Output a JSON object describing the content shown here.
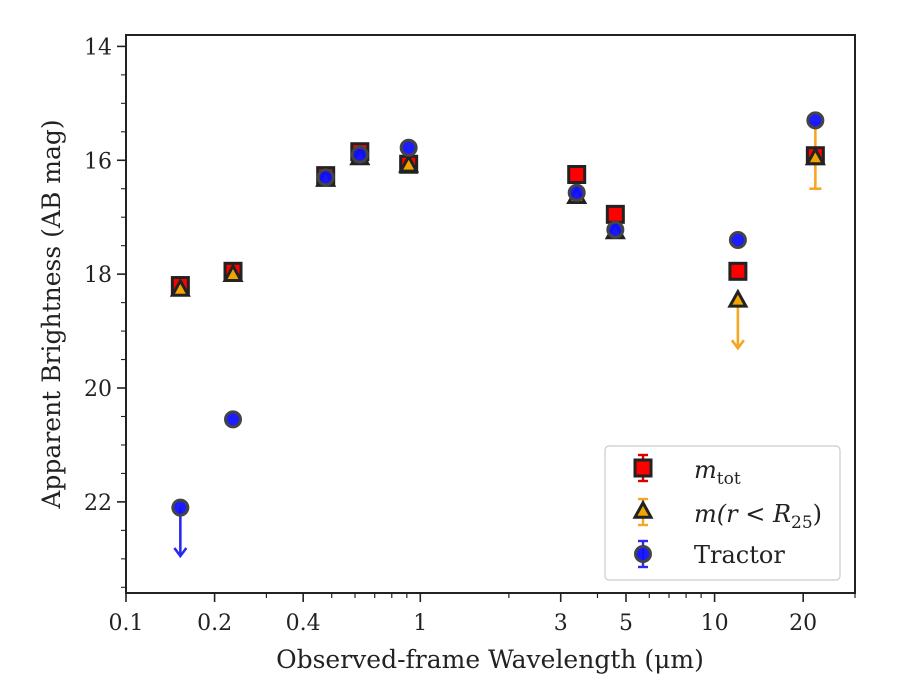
{
  "chart_data": {
    "type": "scatter",
    "xlabel": "Observed-frame Wavelength (μm)",
    "ylabel": "Apparent Brightness (AB mag)",
    "xscale": "log",
    "xlim": [
      0.1,
      30
    ],
    "ylim": [
      23.6,
      13.8
    ],
    "y_inverted": true,
    "x_ticks": [
      0.1,
      0.2,
      0.4,
      1,
      3,
      5,
      10,
      20
    ],
    "x_tick_labels": [
      "0.1",
      "0.2",
      "0.4",
      "1",
      "3",
      "5",
      "10",
      "20"
    ],
    "y_ticks": [
      14,
      16,
      18,
      20,
      22
    ],
    "y_tick_labels": [
      "14",
      "16",
      "18",
      "20",
      "22"
    ],
    "grid": false,
    "legend_position": "lower-right",
    "series": [
      {
        "name_main": "m",
        "name_sub": "tot",
        "marker": "square",
        "color": "#ff0000",
        "edgecolor": "#222222",
        "errcolor": "#dd0000",
        "points": [
          {
            "x": 0.153,
            "y": 18.2
          },
          {
            "x": 0.231,
            "y": 17.95
          },
          {
            "x": 0.477,
            "y": 16.27
          },
          {
            "x": 0.623,
            "y": 15.85
          },
          {
            "x": 0.913,
            "y": 16.07
          },
          {
            "x": 3.4,
            "y": 16.25
          },
          {
            "x": 4.6,
            "y": 16.95
          },
          {
            "x": 12.0,
            "y": 17.95
          },
          {
            "x": 22.0,
            "y": 15.92
          }
        ]
      },
      {
        "name_prefix": "m(r < R",
        "name_sub": "25",
        "name_suffix": ")",
        "marker": "triangle",
        "color": "#f0a500",
        "edgecolor": "#222222",
        "errcolor": "#f5a623",
        "points": [
          {
            "x": 0.153,
            "y": 18.28
          },
          {
            "x": 0.231,
            "y": 18.02
          },
          {
            "x": 0.477,
            "y": 16.35
          },
          {
            "x": 0.623,
            "y": 15.97
          },
          {
            "x": 0.913,
            "y": 16.1
          },
          {
            "x": 3.4,
            "y": 16.65
          },
          {
            "x": 4.6,
            "y": 17.27
          },
          {
            "x": 12.0,
            "y": 18.47,
            "upper_limit": true,
            "arrow_to": 19.3
          },
          {
            "x": 22.0,
            "y": 15.97,
            "err": [
              15.35,
              16.5
            ]
          }
        ]
      },
      {
        "name": "Tractor",
        "marker": "circle",
        "color": "#1010ff",
        "edgecolor": "#444444",
        "errcolor": "#2a2aee",
        "points": [
          {
            "x": 0.153,
            "y": 22.1,
            "upper_limit": true,
            "arrow_to": 22.95
          },
          {
            "x": 0.231,
            "y": 20.55
          },
          {
            "x": 0.477,
            "y": 16.3
          },
          {
            "x": 0.623,
            "y": 15.9
          },
          {
            "x": 0.913,
            "y": 15.78
          },
          {
            "x": 3.4,
            "y": 16.57
          },
          {
            "x": 4.6,
            "y": 17.22
          },
          {
            "x": 12.0,
            "y": 17.4
          },
          {
            "x": 22.0,
            "y": 15.3
          }
        ]
      }
    ],
    "legend": {
      "entries": [
        {
          "main": "m",
          "sub": "tot",
          "suffix": ""
        },
        {
          "main": "m(r < R",
          "sub": "25",
          "suffix": ")"
        },
        {
          "main": "Tractor",
          "sub": "",
          "suffix": ""
        }
      ]
    }
  }
}
